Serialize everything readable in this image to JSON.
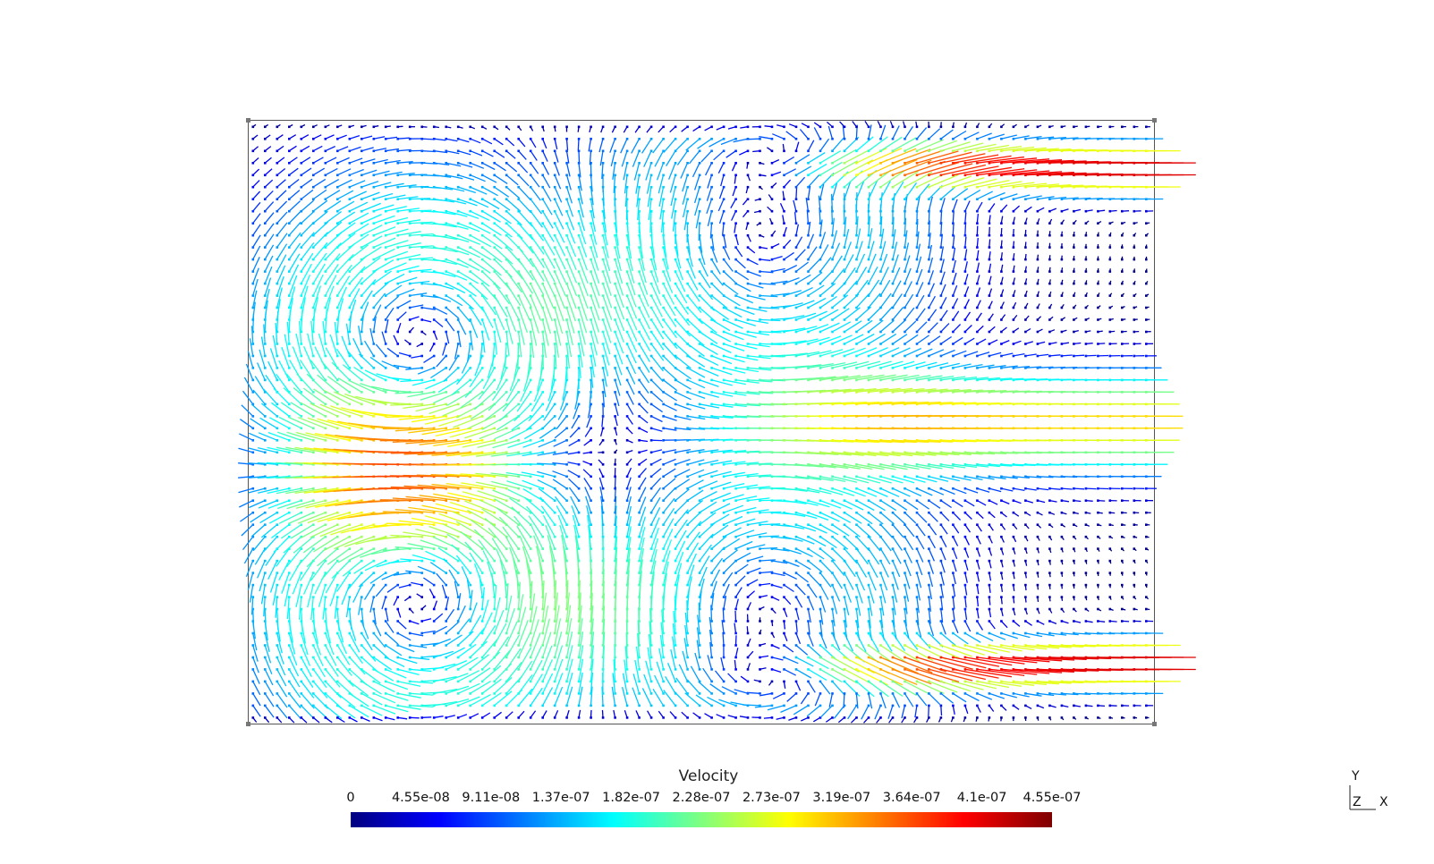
{
  "chart_data": {
    "type": "quiver",
    "title": "",
    "field": "Velocity",
    "xlim": [
      0,
      1.5
    ],
    "ylim": [
      0,
      1.0
    ],
    "grid_nx": 75,
    "grid_ny": 50,
    "colormap": "jet",
    "vmin": 0,
    "vmax": 4.55e-07,
    "colorbar": {
      "title": "Velocity",
      "ticks": [
        "0",
        "4.55e-08",
        "9.11e-08",
        "1.37e-07",
        "1.82e-07",
        "2.28e-07",
        "2.73e-07",
        "3.19e-07",
        "3.64e-07",
        "4.1e-07",
        "4.55e-07"
      ],
      "placement": "bottom"
    },
    "vortices": [
      {
        "x": 0.28,
        "y": 0.62,
        "sense": "clockwise",
        "strength": 1.3
      },
      {
        "x": 0.28,
        "y": 0.22,
        "sense": "counterclockwise",
        "strength": 1.3
      },
      {
        "x": 0.85,
        "y": 0.82,
        "sense": "counterclockwise",
        "strength": 1.0
      },
      {
        "x": 0.85,
        "y": 0.18,
        "sense": "clockwise",
        "strength": 1.0
      }
    ],
    "jets": [
      {
        "y": 0.92,
        "x_start": 0.9,
        "direction": "+x",
        "peak": "high"
      },
      {
        "y": 0.1,
        "x_start": 0.9,
        "direction": "+x",
        "peak": "high"
      },
      {
        "y": 0.5,
        "x_start": 0.95,
        "direction": "+x",
        "peak": "medium"
      }
    ]
  },
  "axes_indicator": {
    "y": "Y",
    "z": "Z",
    "x": "X"
  }
}
